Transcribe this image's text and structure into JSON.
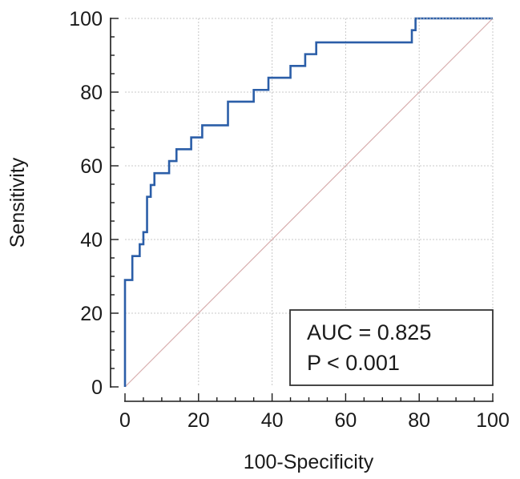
{
  "chart_data": {
    "type": "line",
    "title": "",
    "xlabel": "100-Specificity",
    "ylabel": "Sensitivity",
    "xlim": [
      0,
      100
    ],
    "ylim": [
      0,
      100
    ],
    "x_ticks": [
      0,
      20,
      40,
      60,
      80,
      100
    ],
    "y_ticks": [
      0,
      20,
      40,
      60,
      80,
      100
    ],
    "grid": true,
    "colors": {
      "roc": "#2b5ea8",
      "reference": "#d8aeae",
      "grid": "#c8c8c8",
      "axis": "#1a1a1a"
    },
    "series": [
      {
        "name": "ROC curve",
        "kind": "step",
        "points": [
          [
            0,
            0
          ],
          [
            0,
            29
          ],
          [
            2,
            29
          ],
          [
            2,
            35.5
          ],
          [
            4,
            35.5
          ],
          [
            4,
            38.7
          ],
          [
            5,
            38.7
          ],
          [
            5,
            42
          ],
          [
            6,
            42
          ],
          [
            6,
            51.6
          ],
          [
            7,
            51.6
          ],
          [
            7,
            54.8
          ],
          [
            8,
            54.8
          ],
          [
            8,
            58
          ],
          [
            12,
            58
          ],
          [
            12,
            61.3
          ],
          [
            14,
            61.3
          ],
          [
            14,
            64.5
          ],
          [
            18,
            64.5
          ],
          [
            18,
            67.7
          ],
          [
            21,
            67.7
          ],
          [
            21,
            71
          ],
          [
            28,
            71
          ],
          [
            28,
            77.4
          ],
          [
            35,
            77.4
          ],
          [
            35,
            80.6
          ],
          [
            39,
            80.6
          ],
          [
            39,
            83.9
          ],
          [
            45,
            83.9
          ],
          [
            45,
            87.1
          ],
          [
            49,
            87.1
          ],
          [
            49,
            90.3
          ],
          [
            52,
            90.3
          ],
          [
            52,
            93.5
          ],
          [
            78,
            93.5
          ],
          [
            78,
            96.8
          ],
          [
            79,
            96.8
          ],
          [
            79,
            100
          ],
          [
            100,
            100
          ]
        ]
      },
      {
        "name": "Reference line",
        "kind": "diagonal",
        "points": [
          [
            0,
            0
          ],
          [
            100,
            100
          ]
        ]
      }
    ],
    "annotations": {
      "auc_text": "AUC = 0.825",
      "p_text": "P < 0.001",
      "placement": "bottom-right"
    }
  }
}
